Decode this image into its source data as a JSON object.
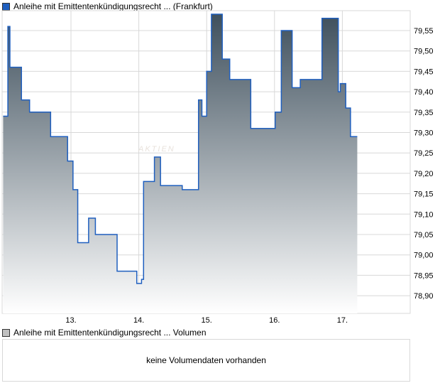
{
  "legend_price": "Anleihe mit Emittentenkündigungsrecht ... (Frankfurt)",
  "legend_volume": "Anleihe mit Emittentenkündigungsrecht ... Volumen",
  "volume_message": "keine Volumendaten vorhanden",
  "watermark": "AKTIEN",
  "colors": {
    "line": "#1f5fbf",
    "fill_top": "#3f505d",
    "fill_bottom": "#ffffff",
    "grid": "#d8d8d8",
    "volume_square": "#c0c0c0"
  },
  "chart_data": {
    "type": "area",
    "title": "",
    "xlabel": "",
    "ylabel": "",
    "x_tick_labels": [
      {
        "day": 13,
        "label": "13."
      },
      {
        "day": 14,
        "label": "14."
      },
      {
        "day": 15,
        "label": "15."
      },
      {
        "day": 16,
        "label": "16."
      },
      {
        "day": 17,
        "label": "17."
      }
    ],
    "y_tick_labels": [
      "79,55",
      "79,50",
      "79,45",
      "79,40",
      "79,35",
      "79,30",
      "79,25",
      "79,20",
      "79,15",
      "79,10",
      "79,05",
      "79,00",
      "78,95",
      "78,90"
    ],
    "ytick_values": [
      79.55,
      79.5,
      79.45,
      79.4,
      79.35,
      79.3,
      79.25,
      79.2,
      79.15,
      79.1,
      79.05,
      79.0,
      78.95,
      78.9
    ],
    "xlim": [
      12.0,
      18.0
    ],
    "ylim": [
      78.85,
      79.6
    ],
    "step": true,
    "points": [
      [
        12.0,
        79.34
      ],
      [
        12.07,
        79.56
      ],
      [
        12.1,
        79.46
      ],
      [
        12.27,
        79.38
      ],
      [
        12.39,
        79.35
      ],
      [
        12.7,
        79.29
      ],
      [
        12.95,
        79.23
      ],
      [
        13.03,
        79.16
      ],
      [
        13.1,
        79.03
      ],
      [
        13.26,
        79.09
      ],
      [
        13.36,
        79.05
      ],
      [
        13.68,
        78.96
      ],
      [
        13.97,
        78.93
      ],
      [
        14.04,
        78.94
      ],
      [
        14.07,
        79.18
      ],
      [
        14.23,
        79.24
      ],
      [
        14.32,
        79.17
      ],
      [
        14.64,
        79.16
      ],
      [
        14.88,
        79.38
      ],
      [
        14.93,
        79.34
      ],
      [
        15.0,
        79.45
      ],
      [
        15.07,
        79.59
      ],
      [
        15.23,
        79.48
      ],
      [
        15.34,
        79.43
      ],
      [
        15.65,
        79.31
      ],
      [
        16.01,
        79.35
      ],
      [
        16.1,
        79.55
      ],
      [
        16.26,
        79.41
      ],
      [
        16.38,
        79.43
      ],
      [
        16.7,
        79.58
      ],
      [
        16.94,
        79.4
      ],
      [
        16.97,
        79.42
      ],
      [
        17.05,
        79.36
      ],
      [
        17.12,
        79.29
      ],
      [
        17.22,
        79.29
      ]
    ]
  }
}
